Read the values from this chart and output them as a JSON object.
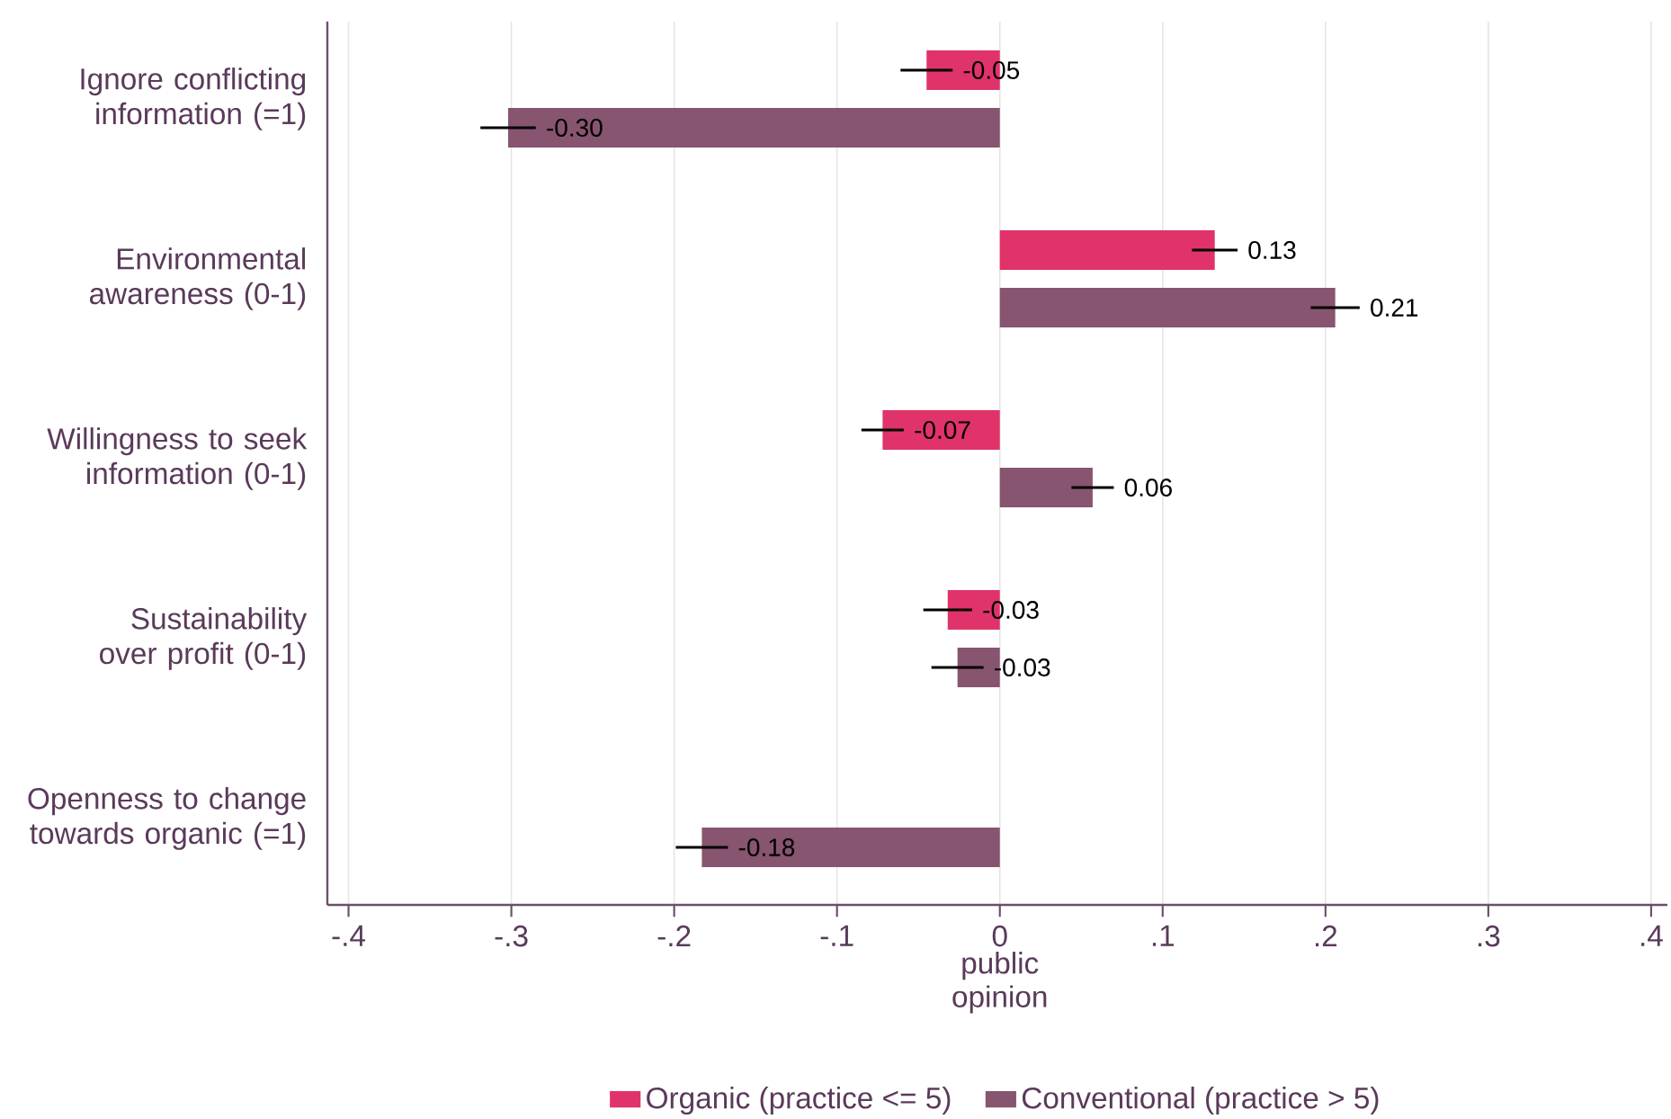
{
  "chart_data": {
    "type": "bar",
    "orientation": "horizontal",
    "categories": [
      "Ignore conflicting information (=1)",
      "Environmental awareness (0-1)",
      "Willingness to seek information (0-1)",
      "Sustainability over profit (0-1)",
      "Openness to change towards organic (=1)"
    ],
    "series": [
      {
        "name": "Organic (practice <= 5)",
        "color": "#e0336a",
        "values": [
          -0.045,
          0.132,
          -0.072,
          -0.032,
          null
        ],
        "errors": [
          0.016,
          0.014,
          0.013,
          0.015,
          null
        ],
        "value_labels": [
          "-0.05",
          "0.13",
          "-0.07",
          "-0.03",
          null
        ]
      },
      {
        "name": "Conventional (practice > 5)",
        "color": "#87556f",
        "values": [
          -0.302,
          0.206,
          0.057,
          -0.026,
          -0.183
        ],
        "errors": [
          0.017,
          0.015,
          0.013,
          0.016,
          0.016
        ],
        "value_labels": [
          "-0.30",
          "0.21",
          "0.06",
          "-0.03",
          "-0.18"
        ]
      }
    ],
    "xlabel": "public opinion",
    "xlim": [
      -0.413,
      0.41
    ],
    "xticks": [
      {
        "value": -0.4,
        "label": "-.4"
      },
      {
        "value": -0.3,
        "label": "-.3"
      },
      {
        "value": -0.2,
        "label": "-.2"
      },
      {
        "value": -0.1,
        "label": "-.1"
      },
      0,
      {
        "value": 0.1,
        "label": ".1"
      },
      {
        "value": 0.2,
        "label": ".2"
      },
      {
        "value": 0.3,
        "label": ".3"
      },
      {
        "value": 0.4,
        "label": ".4"
      }
    ],
    "grid": "x",
    "legend": "bottom"
  }
}
